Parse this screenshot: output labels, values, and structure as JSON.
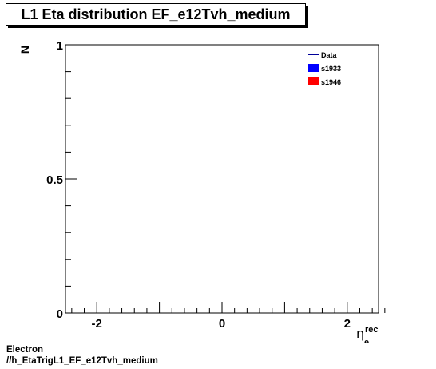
{
  "title": "L1 Eta distribution EF_e12Tvh_medium",
  "footer": {
    "line1": "Electron",
    "line2": "//h_EtaTrigL1_EF_e12Tvh_medium"
  },
  "chart_data": {
    "type": "line",
    "title": "L1 Eta distribution EF_e12Tvh_medium",
    "ylabel": "N",
    "xlabel_main": "η",
    "xlabel_sup": "rec",
    "xlabel_sub": "e",
    "xlim": [
      -2.5,
      2.5
    ],
    "ylim": [
      0,
      1
    ],
    "x_major_ticks": [
      -2,
      0,
      2
    ],
    "x_tick_labels": [
      "-2",
      "0",
      "2"
    ],
    "y_major_ticks": [
      0,
      0.5,
      1
    ],
    "y_tick_labels": [
      "0",
      "0.5",
      "1"
    ],
    "grid": false,
    "legend_position": "top-right",
    "legend": [
      {
        "name": "Data",
        "style": "line",
        "color": "#000099"
      },
      {
        "name": "s1933",
        "style": "fill",
        "color": "#0000ff"
      },
      {
        "name": "s1946",
        "style": "fill",
        "color": "#ff0000"
      }
    ],
    "series": [
      {
        "name": "Data",
        "x": [],
        "y": []
      },
      {
        "name": "s1933",
        "x": [],
        "y": []
      },
      {
        "name": "s1946",
        "x": [],
        "y": []
      }
    ]
  }
}
